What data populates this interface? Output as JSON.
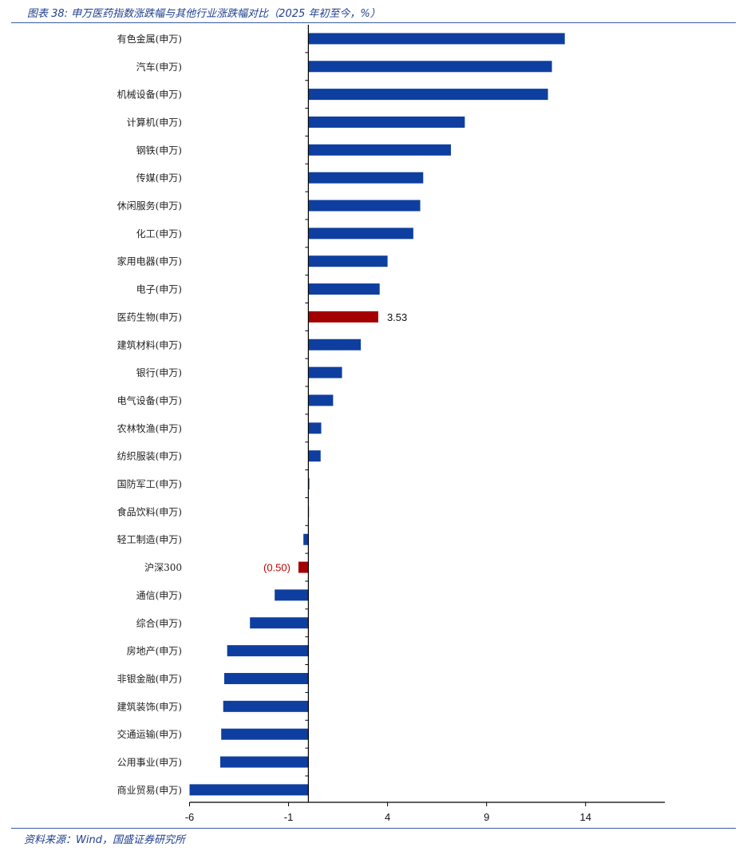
{
  "header": {
    "title": "图表 38: 申万医药指数涨跌幅与其他行业涨跌幅对比（2025 年初至今，%）"
  },
  "footer": {
    "source": "资料来源：Wind，国盛证券研究所"
  },
  "colors": {
    "bar": "#0e3fa0",
    "highlight": "#a50000",
    "highlight_label": "#c00000",
    "text_blue": "#1f3f8f"
  },
  "chart_data": {
    "type": "bar",
    "orientation": "horizontal",
    "title": "",
    "xlabel": "",
    "ylabel": "",
    "xlim": [
      -6,
      18
    ],
    "xticks": [
      -6,
      -1,
      4,
      9,
      14
    ],
    "tick_labels": [
      "-6",
      "-1",
      "4",
      "9",
      "14"
    ],
    "grid": false,
    "categories": [
      "有色金属(申万)",
      "汽车(申万)",
      "机械设备(申万)",
      "计算机(申万)",
      "钢铁(申万)",
      "传媒(申万)",
      "休闲服务(申万)",
      "化工(申万)",
      "家用电器(申万)",
      "电子(申万)",
      "医药生物(申万)",
      "建筑材料(申万)",
      "银行(申万)",
      "电气设备(申万)",
      "农林牧渔(申万)",
      "纺织服装(申万)",
      "国防军工(申万)",
      "食品饮料(申万)",
      "轻工制造(申万)",
      "沪深300",
      "通信(申万)",
      "综合(申万)",
      "房地产(申万)",
      "非银金融(申万)",
      "建筑装饰(申万)",
      "交通运输(申万)",
      "公用事业(申万)",
      "商业贸易(申万)"
    ],
    "values": [
      12.95,
      12.3,
      12.1,
      7.9,
      7.2,
      5.8,
      5.65,
      5.3,
      4.0,
      3.6,
      3.53,
      2.65,
      1.7,
      1.25,
      0.65,
      0.62,
      0.05,
      0.0,
      -0.25,
      -0.5,
      -1.7,
      -2.95,
      -4.1,
      -4.25,
      -4.3,
      -4.4,
      -4.45,
      -6.0
    ],
    "highlight": [
      "医药生物(申万)",
      "沪深300"
    ],
    "data_labels": [
      {
        "category": "医药生物(申万)",
        "text": "3.53"
      },
      {
        "category": "沪深300",
        "text": "(0.50)"
      }
    ]
  }
}
